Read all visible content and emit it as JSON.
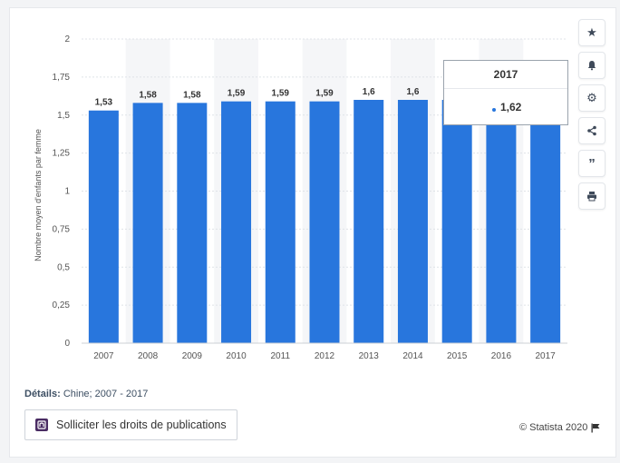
{
  "chart_data": {
    "type": "bar",
    "categories": [
      "2007",
      "2008",
      "2009",
      "2010",
      "2011",
      "2012",
      "2013",
      "2014",
      "2015",
      "2016",
      "2017"
    ],
    "values": [
      1.53,
      1.58,
      1.58,
      1.59,
      1.59,
      1.59,
      1.6,
      1.6,
      1.6,
      1.62,
      1.62
    ],
    "value_labels": [
      "1,53",
      "1,58",
      "1,58",
      "1,59",
      "1,59",
      "1,59",
      "1,6",
      "1,6",
      "",
      "",
      ""
    ],
    "ylabel": "Nombre moyen d'enfants par femme",
    "xlabel": "",
    "ylim": [
      0,
      2
    ],
    "yticks": [
      0,
      0.25,
      0.5,
      0.75,
      1,
      1.25,
      1.5,
      1.75,
      2
    ],
    "ytick_labels": [
      "0",
      "0,25",
      "0,5",
      "0,75",
      "1",
      "1,25",
      "1,5",
      "1,75",
      "2"
    ],
    "bar_color": "#2876dd",
    "grid": true,
    "band_color": "#f5f6f8"
  },
  "tooltip": {
    "title": "2017",
    "value": "1,62"
  },
  "details": {
    "label": "Détails:",
    "text": "Chine; 2007 - 2017"
  },
  "rights_button": {
    "label": "Solliciter les droits de publications"
  },
  "copyright": {
    "text": "© Statista 2020"
  },
  "toolbar": {
    "icons": [
      "star-icon",
      "bell-icon",
      "gear-icon",
      "share-icon",
      "quote-icon",
      "print-icon"
    ]
  }
}
